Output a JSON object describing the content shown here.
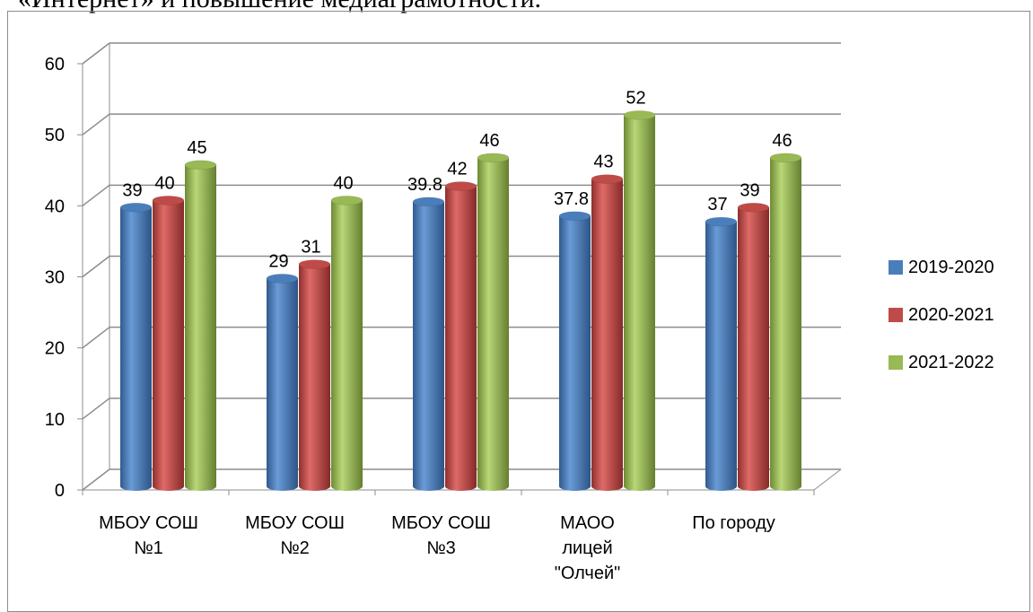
{
  "document": {
    "visible_text": "«Интернет» и повышение медиаграмотности."
  },
  "chart_data": {
    "type": "bar",
    "categories": [
      [
        "МБОУ СОШ",
        "№1"
      ],
      [
        "МБОУ СОШ",
        "№2"
      ],
      [
        "МБОУ СОШ",
        "№3"
      ],
      [
        "МАОО",
        "лицей",
        "\"Олчей\""
      ],
      [
        "По городу"
      ]
    ],
    "series": [
      {
        "name": "2019-2020",
        "values": [
          39,
          29,
          39.8,
          37.8,
          37
        ],
        "labels": [
          "39",
          "29",
          "39.8",
          "37.8",
          "37"
        ],
        "color": "#4a7ebb"
      },
      {
        "name": "2020-2021",
        "values": [
          40,
          31,
          42,
          43,
          39
        ],
        "labels": [
          "40",
          "31",
          "42",
          "43",
          "39"
        ],
        "color": "#be4b48"
      },
      {
        "name": "2021-2022",
        "values": [
          45,
          40,
          46,
          52,
          46
        ],
        "labels": [
          "45",
          "40",
          "46",
          "52",
          "46"
        ],
        "color": "#98b954"
      }
    ],
    "yticks": [
      "0",
      "10",
      "20",
      "30",
      "40",
      "50",
      "60"
    ],
    "ylim": [
      0,
      60
    ],
    "grid": true,
    "legend_position": "right",
    "style": "3d-cylinder"
  }
}
